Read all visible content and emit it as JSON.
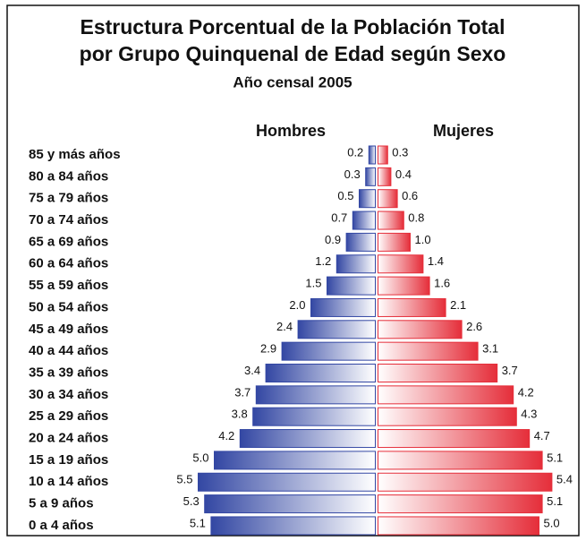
{
  "chart_data": {
    "type": "pyramid",
    "title": [
      "Estructura Porcentual de la Población Total",
      "por Grupo Quinquenal de Edad según Sexo"
    ],
    "subtitle": "Año censal 2005",
    "categories": [
      "85 y más años",
      "80 a 84 años",
      "75 a 79 años",
      "70 a 74 años",
      "65 a 69 años",
      "60 a 64 años",
      "55 a 59 años",
      "50 a 54 años",
      "45 a 49 años",
      "40 a 44 años",
      "35 a 39 años",
      "30 a 34 años",
      "25 a 29 años",
      "20 a 24 años",
      "15 a 19 años",
      "10 a 14 años",
      "5 a 9 años",
      "0 a 4 años"
    ],
    "series": [
      {
        "name": "Hombres",
        "color": "#3347a3",
        "side": "left",
        "values": [
          0.2,
          0.3,
          0.5,
          0.7,
          0.9,
          1.2,
          1.5,
          2.0,
          2.4,
          2.9,
          3.4,
          3.7,
          3.8,
          4.2,
          5.0,
          5.5,
          5.3,
          5.1
        ],
        "value_labels": [
          "0.2",
          "0.3",
          "0.5",
          "0.7",
          "0.9",
          "1.2",
          "1.5",
          "2.0",
          "2.4",
          "2.9",
          "3.4",
          "3.7",
          "3.8",
          "4.2",
          "5.0",
          "5.5",
          "5.3",
          "5.1"
        ]
      },
      {
        "name": "Mujeres",
        "color": "#e52e3a",
        "side": "right",
        "values": [
          0.3,
          0.4,
          0.6,
          0.8,
          1.0,
          1.4,
          1.6,
          2.1,
          2.6,
          3.1,
          3.7,
          4.2,
          4.3,
          4.7,
          5.1,
          5.4,
          5.1,
          5.0
        ],
        "value_labels": [
          "0.3",
          "0.4",
          "0.6",
          "0.8",
          "1.0",
          "1.4",
          "1.6",
          "2.1",
          "2.6",
          "3.1",
          "3.7",
          "4.2",
          "4.3",
          "4.7",
          "5.1",
          "5.4",
          "5.1",
          "5.0"
        ]
      }
    ]
  }
}
